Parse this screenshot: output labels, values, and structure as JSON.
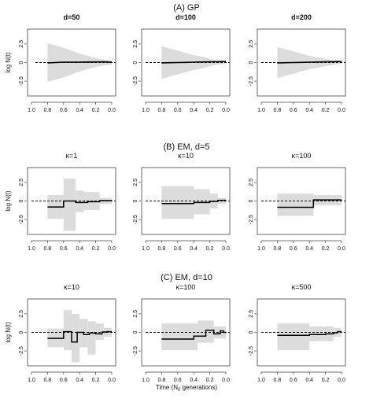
{
  "figure": {
    "rows": [
      {
        "title": "(A) GP"
      },
      {
        "title": "(B) EM, d=5"
      },
      {
        "title": "(C) EM, d=10"
      }
    ],
    "x_axis_label_prefix": "Time (N",
    "x_axis_label_sub": "0",
    "x_axis_label_suffix": " generations)"
  },
  "chart_data": [
    {
      "type": "line",
      "row": 0,
      "col": 0,
      "title": "d=50",
      "title_bold": true,
      "ylabel": "log N(t)",
      "xlim": [
        1.0,
        0.0
      ],
      "ylim": [
        -4.5,
        4.5
      ],
      "xticks": [
        "1.0",
        "0.8",
        "0.6",
        "0.4",
        "0.2",
        "0.0"
      ],
      "yticks": [
        "-2.5",
        "0",
        "2.5"
      ],
      "reference_line": 0,
      "reference_from": 0.95,
      "ci": {
        "x": [
          0.8,
          0.7,
          0.6,
          0.5,
          0.4,
          0.3,
          0.2,
          0.1,
          0.0
        ],
        "lower": [
          -2.6,
          -2.3,
          -2.0,
          -1.6,
          -1.2,
          -0.9,
          -0.6,
          -0.4,
          -0.3
        ],
        "upper": [
          2.6,
          2.3,
          2.0,
          1.6,
          1.2,
          0.9,
          0.6,
          0.4,
          0.3
        ]
      },
      "series": [
        {
          "x": [
            0.8,
            0.7,
            0.6,
            0.5,
            0.4,
            0.3,
            0.2,
            0.1,
            0.0
          ],
          "y": [
            -0.05,
            0.0,
            0.05,
            0.05,
            0.05,
            0.07,
            0.08,
            0.1,
            0.05
          ]
        }
      ]
    },
    {
      "type": "line",
      "row": 0,
      "col": 1,
      "title": "d=100",
      "title_bold": true,
      "ylabel": "",
      "xlim": [
        1.0,
        0.0
      ],
      "ylim": [
        -4.5,
        4.5
      ],
      "xticks": [
        "1.0",
        "0.8",
        "0.6",
        "0.4",
        "0.2",
        "0.0"
      ],
      "yticks": [
        "-2.5",
        "0",
        "2.5"
      ],
      "reference_line": 0,
      "reference_from": 1.0,
      "ci": {
        "x": [
          0.8,
          0.7,
          0.6,
          0.5,
          0.4,
          0.3,
          0.2,
          0.1,
          0.0
        ],
        "lower": [
          -2.2,
          -1.9,
          -1.6,
          -1.3,
          -1.0,
          -0.8,
          -0.5,
          -0.3,
          -0.2
        ],
        "upper": [
          2.2,
          1.9,
          1.6,
          1.3,
          1.0,
          0.8,
          0.5,
          0.3,
          0.2
        ]
      },
      "series": [
        {
          "x": [
            0.8,
            0.7,
            0.6,
            0.5,
            0.4,
            0.3,
            0.2,
            0.1,
            0.0
          ],
          "y": [
            -0.05,
            -0.02,
            0.0,
            0.02,
            0.05,
            0.07,
            0.1,
            0.12,
            0.15
          ]
        }
      ]
    },
    {
      "type": "line",
      "row": 0,
      "col": 2,
      "title": "d=200",
      "title_bold": true,
      "ylabel": "",
      "xlim": [
        1.0,
        0.0
      ],
      "ylim": [
        -4.5,
        4.5
      ],
      "xticks": [
        "1.0",
        "0.8",
        "0.6",
        "0.4",
        "0.2",
        "0.0"
      ],
      "yticks": [
        "-2.5",
        "0",
        "2.5"
      ],
      "reference_line": 0,
      "reference_from": 1.0,
      "ci": {
        "x": [
          0.8,
          0.7,
          0.6,
          0.5,
          0.4,
          0.3,
          0.2,
          0.1,
          0.0
        ],
        "lower": [
          -2.1,
          -1.8,
          -1.5,
          -1.2,
          -0.9,
          -0.7,
          -0.5,
          -0.3,
          -0.2
        ],
        "upper": [
          2.1,
          1.8,
          1.5,
          1.2,
          0.9,
          0.7,
          0.5,
          0.3,
          0.2
        ]
      },
      "series": [
        {
          "x": [
            0.8,
            0.7,
            0.6,
            0.5,
            0.4,
            0.3,
            0.2,
            0.1,
            0.0
          ],
          "y": [
            -0.05,
            -0.02,
            0.0,
            0.02,
            0.05,
            0.07,
            0.1,
            0.12,
            0.15
          ]
        }
      ]
    },
    {
      "type": "line",
      "row": 1,
      "col": 0,
      "title": "κ=1",
      "title_bold": false,
      "ylabel": "log N(t)",
      "xlim": [
        1.0,
        0.0
      ],
      "ylim": [
        -4.5,
        4.5
      ],
      "xticks": [
        "1.0",
        "0.8",
        "0.6",
        "0.4",
        "0.2",
        "0.0"
      ],
      "yticks": [
        "-2.5",
        "0",
        "2.5"
      ],
      "reference_line": 0,
      "reference_from": 1.0,
      "ci_steps": [
        {
          "x0": 0.8,
          "x1": 0.6,
          "lower": -2.4,
          "upper": 0.8
        },
        {
          "x0": 0.6,
          "x1": 0.45,
          "lower": -4.0,
          "upper": 3.0
        },
        {
          "x0": 0.45,
          "x1": 0.35,
          "lower": -1.5,
          "upper": 1.4
        },
        {
          "x0": 0.35,
          "x1": 0.15,
          "lower": -1.2,
          "upper": 1.2
        },
        {
          "x0": 0.15,
          "x1": 0.0,
          "lower": -0.4,
          "upper": 0.4
        }
      ],
      "step_series": [
        {
          "x0": 0.8,
          "x1": 0.6,
          "y": -0.8
        },
        {
          "x0": 0.6,
          "x1": 0.45,
          "y": 0.0
        },
        {
          "x0": 0.45,
          "x1": 0.3,
          "y": -0.2
        },
        {
          "x0": 0.3,
          "x1": 0.15,
          "y": -0.1
        },
        {
          "x0": 0.15,
          "x1": 0.0,
          "y": 0.05
        }
      ]
    },
    {
      "type": "line",
      "row": 1,
      "col": 1,
      "title": "κ=10",
      "title_bold": false,
      "ylabel": "",
      "xlim": [
        1.0,
        0.0
      ],
      "ylim": [
        -4.5,
        4.5
      ],
      "xticks": [
        "1.0",
        "0.8",
        "0.6",
        "0.4",
        "0.2",
        "0.0"
      ],
      "yticks": [
        "-2.5",
        "0",
        "2.5"
      ],
      "reference_line": 0,
      "reference_from": 1.0,
      "ci_steps": [
        {
          "x0": 0.8,
          "x1": 0.4,
          "lower": -2.4,
          "upper": 2.0
        },
        {
          "x0": 0.4,
          "x1": 0.2,
          "lower": -1.8,
          "upper": 1.6
        },
        {
          "x0": 0.2,
          "x1": 0.1,
          "lower": -1.0,
          "upper": 1.0
        },
        {
          "x0": 0.1,
          "x1": 0.0,
          "lower": -0.4,
          "upper": 0.4
        }
      ],
      "step_series": [
        {
          "x0": 0.8,
          "x1": 0.4,
          "y": -0.35
        },
        {
          "x0": 0.4,
          "x1": 0.2,
          "y": -0.2
        },
        {
          "x0": 0.2,
          "x1": 0.1,
          "y": -0.05
        },
        {
          "x0": 0.1,
          "x1": 0.0,
          "y": 0.1
        }
      ]
    },
    {
      "type": "line",
      "row": 1,
      "col": 2,
      "title": "κ=100",
      "title_bold": false,
      "ylabel": "",
      "xlim": [
        1.0,
        0.0
      ],
      "ylim": [
        -4.5,
        4.5
      ],
      "xticks": [
        "1.0",
        "0.8",
        "0.6",
        "0.4",
        "0.2",
        "0.0"
      ],
      "yticks": [
        "-2.5",
        "0",
        "2.5"
      ],
      "reference_line": 0,
      "reference_from": 1.0,
      "ci_steps": [
        {
          "x0": 0.8,
          "x1": 0.35,
          "lower": -2.0,
          "upper": 1.0
        },
        {
          "x0": 0.35,
          "x1": 0.0,
          "lower": -0.6,
          "upper": 0.8
        }
      ],
      "step_series": [
        {
          "x0": 0.8,
          "x1": 0.35,
          "y": -0.85
        },
        {
          "x0": 0.35,
          "x1": 0.0,
          "y": 0.15
        }
      ]
    },
    {
      "type": "line",
      "row": 2,
      "col": 0,
      "title": "κ=10",
      "title_bold": false,
      "ylabel": "log N(t)",
      "xlim": [
        1.0,
        0.0
      ],
      "ylim": [
        -4.5,
        4.5
      ],
      "xticks": [
        "1.0",
        "0.8",
        "0.6",
        "0.4",
        "0.2",
        "0.0"
      ],
      "yticks": [
        "-2.5",
        "0",
        "2.5"
      ],
      "reference_line": 0,
      "reference_from": 1.0,
      "ci_steps": [
        {
          "x0": 0.8,
          "x1": 0.6,
          "lower": -2.0,
          "upper": 0.5
        },
        {
          "x0": 0.6,
          "x1": 0.5,
          "lower": -2.4,
          "upper": 3.0
        },
        {
          "x0": 0.5,
          "x1": 0.4,
          "lower": -4.0,
          "upper": 2.5
        },
        {
          "x0": 0.4,
          "x1": 0.3,
          "lower": -2.0,
          "upper": 1.8
        },
        {
          "x0": 0.3,
          "x1": 0.2,
          "lower": -3.0,
          "upper": 1.5
        },
        {
          "x0": 0.2,
          "x1": 0.1,
          "lower": -1.0,
          "upper": 1.2
        },
        {
          "x0": 0.1,
          "x1": 0.0,
          "lower": -0.6,
          "upper": 0.6
        }
      ],
      "step_series": [
        {
          "x0": 0.8,
          "x1": 0.6,
          "y": -0.8
        },
        {
          "x0": 0.6,
          "x1": 0.5,
          "y": 0.1
        },
        {
          "x0": 0.5,
          "x1": 0.43,
          "y": -1.3
        },
        {
          "x0": 0.43,
          "x1": 0.35,
          "y": 0.0
        },
        {
          "x0": 0.35,
          "x1": 0.28,
          "y": -0.3
        },
        {
          "x0": 0.28,
          "x1": 0.2,
          "y": -0.1
        },
        {
          "x0": 0.2,
          "x1": 0.12,
          "y": -0.2
        },
        {
          "x0": 0.12,
          "x1": 0.06,
          "y": 0.05
        },
        {
          "x0": 0.06,
          "x1": 0.0,
          "y": 0.1
        }
      ]
    },
    {
      "type": "line",
      "row": 2,
      "col": 1,
      "title": "κ=100",
      "title_bold": false,
      "ylabel": "",
      "xlim": [
        1.0,
        0.0
      ],
      "ylim": [
        -4.5,
        4.5
      ],
      "xticks": [
        "1.0",
        "0.8",
        "0.6",
        "0.4",
        "0.2",
        "0.0"
      ],
      "yticks": [
        "-2.5",
        "0",
        "2.5"
      ],
      "reference_line": 0,
      "reference_from": 1.0,
      "ci_steps": [
        {
          "x0": 0.8,
          "x1": 0.35,
          "lower": -2.4,
          "upper": 1.2
        },
        {
          "x0": 0.35,
          "x1": 0.15,
          "lower": -1.4,
          "upper": 1.6
        },
        {
          "x0": 0.15,
          "x1": 0.0,
          "lower": -0.8,
          "upper": 0.8
        }
      ],
      "step_series": [
        {
          "x0": 0.8,
          "x1": 0.4,
          "y": -0.9
        },
        {
          "x0": 0.4,
          "x1": 0.25,
          "y": -0.5
        },
        {
          "x0": 0.25,
          "x1": 0.15,
          "y": 0.3
        },
        {
          "x0": 0.15,
          "x1": 0.07,
          "y": -0.2
        },
        {
          "x0": 0.07,
          "x1": 0.03,
          "y": 0.2
        },
        {
          "x0": 0.03,
          "x1": 0.0,
          "y": 0.0
        }
      ]
    },
    {
      "type": "line",
      "row": 2,
      "col": 2,
      "title": "κ=500",
      "title_bold": false,
      "ylabel": "",
      "xlim": [
        1.0,
        0.0
      ],
      "ylim": [
        -4.5,
        4.5
      ],
      "xticks": [
        "1.0",
        "0.8",
        "0.6",
        "0.4",
        "0.2",
        "0.0"
      ],
      "yticks": [
        "-2.5",
        "0",
        "2.5"
      ],
      "reference_line": 0,
      "reference_from": 1.0,
      "ci_steps": [
        {
          "x0": 0.8,
          "x1": 0.4,
          "lower": -2.4,
          "upper": 1.2
        },
        {
          "x0": 0.4,
          "x1": 0.1,
          "lower": -1.2,
          "upper": 0.8
        },
        {
          "x0": 0.1,
          "x1": 0.0,
          "lower": -0.6,
          "upper": 0.6
        }
      ],
      "step_series": [
        {
          "x0": 0.8,
          "x1": 0.4,
          "y": -0.4
        },
        {
          "x0": 0.4,
          "x1": 0.2,
          "y": -0.3
        },
        {
          "x0": 0.2,
          "x1": 0.1,
          "y": -0.2
        },
        {
          "x0": 0.1,
          "x1": 0.05,
          "y": -0.05
        },
        {
          "x0": 0.05,
          "x1": 0.0,
          "y": 0.1
        }
      ]
    }
  ],
  "colors": {
    "band": "#dcdcdc",
    "line": "#000000",
    "axis": "#444444"
  }
}
